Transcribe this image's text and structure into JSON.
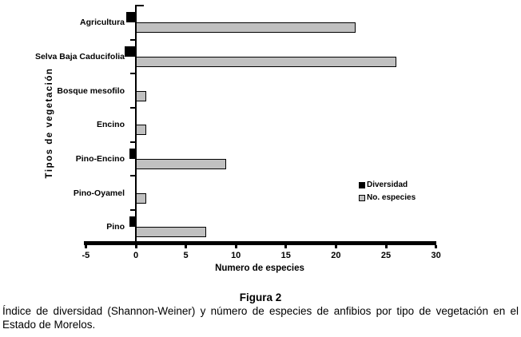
{
  "chart_data": {
    "type": "bar",
    "orientation": "horizontal",
    "xlabel": "Numero de especies",
    "ylabel": "Tipos de vegetación",
    "xlim": [
      -5,
      30
    ],
    "xticks": [
      -5,
      0,
      5,
      10,
      15,
      20,
      25,
      30
    ],
    "grid": false,
    "legend_position": "center-right",
    "categories": [
      "Agricultura",
      "Selva Baja Caducifolia",
      "Bosque mesofilo",
      "Encino",
      "Pino-Encino",
      "Pino-Oyamel",
      "Pino"
    ],
    "series": [
      {
        "name": "Diversidad",
        "color": "#000000",
        "bar_direction": "left-of-zero",
        "values": [
          0.95,
          1.1,
          0,
          0,
          0.65,
          0,
          0.65
        ]
      },
      {
        "name": "No. especies",
        "color": "#c0c0c0",
        "bar_direction": "right-of-zero",
        "values": [
          22,
          26,
          1,
          1,
          9,
          1,
          7
        ]
      }
    ]
  },
  "legend": {
    "items": [
      {
        "label": "Diversidad",
        "color": "#000000"
      },
      {
        "label": "No. especies",
        "color": "#c0c0c0"
      }
    ]
  },
  "caption": {
    "title": "Figura 2",
    "body": "Índice de diversidad (Shannon-Weiner) y número de especies de anfibios por tipo de vegetación en el Estado de Morelos."
  },
  "colors": {
    "background": "#ffffff",
    "axis": "#000000",
    "bar_black": "#000000",
    "bar_gray": "#c0c0c0"
  }
}
